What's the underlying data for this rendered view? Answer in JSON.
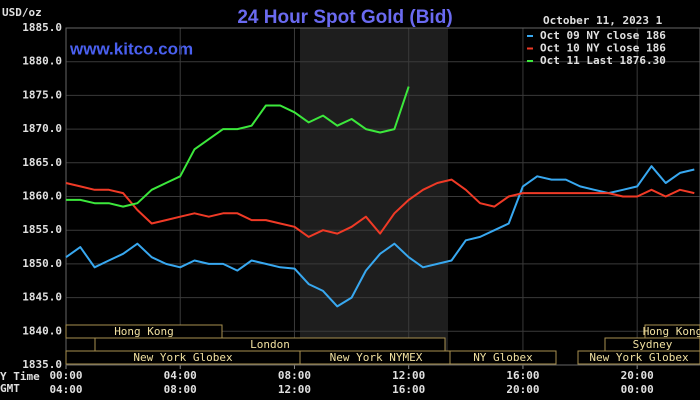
{
  "chart_data": {
    "type": "line",
    "title": "24 Hour Spot Gold (Bid)",
    "subtitle": "October 11, 2023 1",
    "watermark": "www.kitco.com",
    "ylabel": "USD/oz",
    "xlabel": "Y Time",
    "x2label": "GMT",
    "x": [
      0,
      0.5,
      1,
      1.5,
      2,
      2.5,
      3,
      3.5,
      4,
      4.5,
      5,
      5.5,
      6,
      6.5,
      7,
      7.5,
      8,
      8.5,
      9,
      9.5,
      10,
      10.5,
      11,
      11.5,
      12,
      12.5,
      13,
      13.5,
      14,
      14.5,
      15,
      15.5,
      16,
      16.5,
      17,
      17.5,
      18,
      18.5,
      19,
      19.5,
      20,
      20.5,
      21,
      21.5,
      22
    ],
    "series": [
      {
        "name": "Oct 09 NY close 186",
        "color": "#38a8f0",
        "values": [
          1851,
          1852.5,
          1849.5,
          1850.5,
          1851.5,
          1853,
          1851,
          1850,
          1849.5,
          1850.5,
          1850,
          1850,
          1849,
          1850.5,
          1850,
          1849.5,
          1849.3,
          1847,
          1846,
          1843.7,
          1845,
          1849,
          1851.5,
          1853,
          1851,
          1849.5,
          1850,
          1850.5,
          1853.5,
          1854,
          1855,
          1856,
          1861.5,
          1863,
          1862.5,
          1862.5,
          1861.5,
          1861,
          1860.5,
          1861,
          1861.5,
          1864.5,
          1862,
          1863.5,
          1864
        ]
      },
      {
        "name": "Oct 10 NY close 186",
        "color": "#f03a26",
        "values": [
          1862,
          1861.5,
          1861,
          1861,
          1860.5,
          1858,
          1856,
          1856.5,
          1857,
          1857.5,
          1857,
          1857.5,
          1857.5,
          1856.5,
          1856.5,
          1856,
          1855.5,
          1854,
          1855,
          1854.5,
          1855.5,
          1857,
          1854.5,
          1857.5,
          1859.5,
          1861,
          1862,
          1862.5,
          1861,
          1859,
          1858.5,
          1860,
          1860.5,
          1860.5,
          1860.5,
          1860.5,
          1860.5,
          1860.5,
          1860.5,
          1860,
          1860,
          1861,
          1860,
          1861,
          1860.5
        ]
      },
      {
        "name": "Oct 11 Last 1876.30",
        "color": "#3ce83c",
        "values": [
          1859.5,
          1859.5,
          1859,
          1859,
          1858.5,
          1859,
          1861,
          1862,
          1863,
          1867,
          1868.5,
          1870,
          1870,
          1870.5,
          1873.5,
          1873.5,
          1872.5,
          1871,
          1872,
          1870.5,
          1871.5,
          1870,
          1869.5,
          1870,
          1876.3,
          null,
          null,
          null,
          null,
          null,
          null,
          null,
          null,
          null,
          null,
          null,
          null,
          null,
          null,
          null,
          null,
          null,
          null,
          null,
          null
        ]
      }
    ],
    "xlim": [
      0,
      22.2
    ],
    "xticks": [
      {
        "value": 0,
        "label": "00:00"
      },
      {
        "value": 4,
        "label": "04:00"
      },
      {
        "value": 8,
        "label": "08:00"
      },
      {
        "value": 12,
        "label": "12:00"
      },
      {
        "value": 16,
        "label": "16:00"
      },
      {
        "value": 20,
        "label": "20:00"
      }
    ],
    "x2lim": [
      4,
      26.2
    ],
    "x2ticks": [
      {
        "value": 4,
        "label": "04:00"
      },
      {
        "value": 8,
        "label": "08:00"
      },
      {
        "value": 12,
        "label": "12:00"
      },
      {
        "value": 16,
        "label": "16:00"
      },
      {
        "value": 20,
        "label": "20:00"
      },
      {
        "value": 24,
        "label": "00:00"
      }
    ],
    "ylim": [
      1835,
      1885
    ],
    "yticks": [
      {
        "value": 1835,
        "label": "1835.0"
      },
      {
        "value": 1840,
        "label": "1840.0"
      },
      {
        "value": 1845,
        "label": "1845.0"
      },
      {
        "value": 1850,
        "label": "1850.0"
      },
      {
        "value": 1855,
        "label": "1855.0"
      },
      {
        "value": 1860,
        "label": "1860.0"
      },
      {
        "value": 1865,
        "label": "1865.0"
      },
      {
        "value": 1870,
        "label": "1870.0"
      },
      {
        "value": 1875,
        "label": "1875.0"
      },
      {
        "value": 1880,
        "label": "1880.0"
      },
      {
        "value": 1885,
        "label": "1885.0"
      }
    ],
    "grid": true,
    "legend": "top-right",
    "sessions": [
      "Hong Kong",
      "London",
      "New York Globex",
      "New York NYMEX",
      "NY Globex",
      "Hong Kong",
      "Sydney",
      "New York Globex"
    ]
  }
}
